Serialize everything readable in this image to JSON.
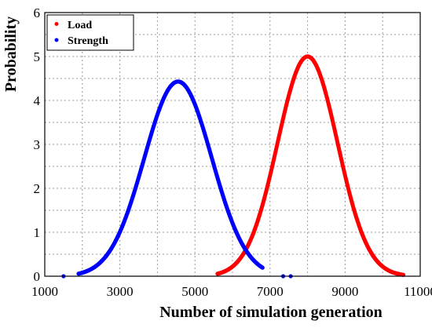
{
  "chart_data": {
    "type": "scatter",
    "xlabel": "Number of simulation generation",
    "ylabel": "Probability",
    "xlim": [
      1000,
      11000
    ],
    "ylim": [
      0,
      6
    ],
    "xticks": [
      1000,
      3000,
      5000,
      7000,
      9000,
      11000
    ],
    "yticks": [
      0,
      1,
      2,
      3,
      4,
      5,
      6
    ],
    "grid": true,
    "legend_position": "top-left",
    "series": [
      {
        "name": "Load",
        "color": "#ff0000",
        "distribution": {
          "mean": 8000,
          "std": 800,
          "peak": 5.0
        },
        "x_range": [
          5600,
          10550
        ]
      },
      {
        "name": "Strength",
        "color": "#0000ff",
        "distribution": {
          "mean": 4550,
          "std": 900,
          "peak": 4.43
        },
        "x_range": [
          1900,
          6800
        ],
        "outliers": [
          [
            1500,
            0.0
          ],
          [
            7350,
            0.0
          ],
          [
            7550,
            0.0
          ]
        ]
      }
    ]
  }
}
